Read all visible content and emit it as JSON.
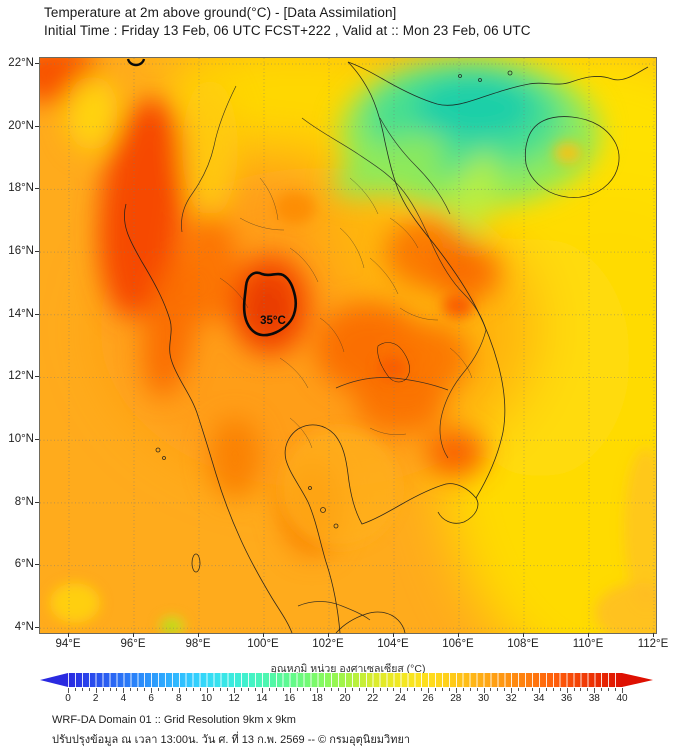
{
  "header": {
    "title": "Temperature at 2m above ground(°C) - [Data Assimilation]",
    "subtitle": "Initial Time : Friday 13 Feb, 06 UTC FCST+222 , Valid at :: Mon 23 Feb, 06 UTC"
  },
  "map": {
    "lat_labels": [
      "22°N",
      "20°N",
      "18°N",
      "16°N",
      "14°N",
      "12°N",
      "10°N",
      "8°N",
      "6°N",
      "4°N"
    ],
    "lon_labels": [
      "94°E",
      "96°E",
      "98°E",
      "100°E",
      "102°E",
      "104°E",
      "106°E",
      "108°E",
      "110°E",
      "112°E"
    ],
    "contour_label": "35°C"
  },
  "colorbar": {
    "label": "อุณหภูมิ หน่วย องศาเซลเซียส (°C)",
    "min": 0,
    "max": 40,
    "tick_labels": [
      "0",
      "2",
      "4",
      "6",
      "8",
      "10",
      "12",
      "14",
      "16",
      "18",
      "20",
      "22",
      "24",
      "26",
      "28",
      "30",
      "32",
      "34",
      "36",
      "38",
      "40"
    ],
    "stops": [
      "#2A2AE0",
      "#2A3CE8",
      "#2A50EE",
      "#2A62F2",
      "#2A74F6",
      "#2A86FA",
      "#2C98FC",
      "#2EAAFE",
      "#30BCFF",
      "#32CCFF",
      "#34DAF8",
      "#38E4EC",
      "#3CECDC",
      "#42F2CA",
      "#4AF6B6",
      "#54F8A2",
      "#60FA8E",
      "#6EFA7A",
      "#7EFA66",
      "#90F856",
      "#A4F446",
      "#BEF03A",
      "#D8EC2E",
      "#E6EA26",
      "#F2E822",
      "#FAE41E",
      "#FFDE1C",
      "#FFD41A",
      "#FFC818",
      "#FFBA16",
      "#FFAA14",
      "#FF9C12",
      "#FF8E10",
      "#FF800E",
      "#FF700C",
      "#FF600A",
      "#FA5008",
      "#F24006",
      "#EC3004",
      "#E42002",
      "#DE1002"
    ]
  },
  "footer": {
    "line1": "WRF-DA Domain 01 :: Grid Resolution 9km x 9km",
    "line2": "ปรับปรุงข้อมูล ณ เวลา 13:00น. วัน ศ. ที่ 13 ก.พ. 2569 -- © กรมอุตุนิยมวิทยา"
  },
  "chart_data": {
    "type": "heatmap",
    "title": "Temperature at 2m above ground (°C), WRF-DA Domain 01",
    "x_range_lon_e": [
      93.1,
      112.2
    ],
    "y_range_lat_n": [
      3.9,
      22.2
    ],
    "grid_interval_deg": 2,
    "colorbar_range_c": [
      0,
      40
    ],
    "colorbar_tick_step_c": 2,
    "contours": [
      {
        "value_c": 35,
        "location": "central Thailand near 14.5N 100E"
      }
    ],
    "regions_estimated_c": [
      {
        "region": "Northern Vietnam highlands (green core)",
        "temp_c": 17
      },
      {
        "region": "Gulf of Tonkin / Red River delta",
        "temp_c": 22
      },
      {
        "region": "Hainan and South China Sea",
        "temp_c": 26
      },
      {
        "region": "Laos (yellow-orange)",
        "temp_c": 28
      },
      {
        "region": "Andaman Sea / Gulf of Thailand (amber)",
        "temp_c": 30
      },
      {
        "region": "Myanmar coastal band (red-orange)",
        "temp_c": 34
      },
      {
        "region": "Central Thailand core (inside 35C contour)",
        "temp_c": 35
      },
      {
        "region": "Northeast Thailand / Cambodia (deep orange)",
        "temp_c": 33
      },
      {
        "region": "Mekong delta (orange-red)",
        "temp_c": 33
      },
      {
        "region": "Malay peninsula land",
        "temp_c": 31
      }
    ]
  }
}
